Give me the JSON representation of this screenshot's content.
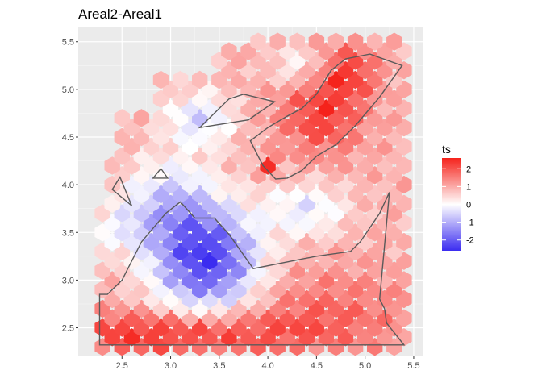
{
  "chart_data": {
    "type": "heatmap",
    "title": "Areal2-Areal1",
    "xlabel": "",
    "ylabel": "",
    "xlim": [
      2.05,
      5.6
    ],
    "ylim": [
      2.2,
      5.65
    ],
    "x_ticks": [
      "2.5",
      "3.0",
      "3.5",
      "4.0",
      "4.5",
      "5.0",
      "5.5"
    ],
    "y_ticks": [
      "2.5",
      "3.0",
      "3.5",
      "4.0",
      "4.5",
      "5.0",
      "5.5"
    ],
    "x_tick_values": [
      2.5,
      3.0,
      3.5,
      4.0,
      4.5,
      5.0,
      5.5
    ],
    "y_tick_values": [
      2.5,
      3.0,
      3.5,
      4.0,
      4.5,
      5.0,
      5.5
    ],
    "grid": true,
    "legend": {
      "title": "ts",
      "position": "right",
      "ticks": [
        "2",
        "1",
        "0",
        "-1",
        "-2"
      ],
      "tick_values": [
        2,
        1,
        0,
        -1,
        -2
      ],
      "range": [
        -2.6,
        2.6
      ],
      "low_color": "#3b2cf0",
      "mid_color": "#ffffff",
      "high_color": "#f5221b"
    },
    "hex_value_model": "estimated smooth field sampled on hexagonal bins",
    "regions": [
      {
        "points": [
          [
            2.27,
            2.32
          ],
          [
            5.4,
            2.32
          ],
          [
            5.22,
            2.55
          ],
          [
            5.2,
            2.7
          ],
          [
            5.15,
            2.8
          ],
          [
            5.25,
            3.92
          ],
          [
            5.15,
            3.7
          ],
          [
            4.95,
            3.4
          ],
          [
            4.85,
            3.3
          ],
          [
            4.5,
            3.25
          ],
          [
            3.85,
            3.12
          ],
          [
            3.6,
            3.48
          ],
          [
            3.45,
            3.65
          ],
          [
            3.25,
            3.65
          ],
          [
            3.1,
            3.82
          ],
          [
            2.95,
            3.7
          ],
          [
            2.7,
            3.4
          ],
          [
            2.5,
            3.0
          ],
          [
            2.35,
            2.85
          ],
          [
            2.27,
            2.85
          ]
        ]
      },
      {
        "points": [
          [
            3.3,
            4.6
          ],
          [
            3.6,
            4.9
          ],
          [
            3.75,
            4.95
          ],
          [
            4.07,
            4.87
          ],
          [
            3.8,
            4.68
          ]
        ]
      },
      {
        "points": [
          [
            3.82,
            4.46
          ],
          [
            4.0,
            4.6
          ],
          [
            4.2,
            4.72
          ],
          [
            4.35,
            4.8
          ],
          [
            4.5,
            4.95
          ],
          [
            4.65,
            5.2
          ],
          [
            4.8,
            5.32
          ],
          [
            5.05,
            5.37
          ],
          [
            5.38,
            5.25
          ],
          [
            5.15,
            4.92
          ],
          [
            4.9,
            4.62
          ],
          [
            4.7,
            4.42
          ],
          [
            4.5,
            4.3
          ],
          [
            4.35,
            4.15
          ],
          [
            4.2,
            4.07
          ],
          [
            4.08,
            4.06
          ],
          [
            3.95,
            4.2
          ],
          [
            3.9,
            4.3
          ]
        ]
      },
      {
        "points": [
          [
            2.4,
            3.95
          ],
          [
            2.48,
            4.08
          ],
          [
            2.6,
            3.78
          ]
        ]
      },
      {
        "points": [
          [
            2.82,
            4.07
          ],
          [
            2.9,
            4.17
          ],
          [
            2.97,
            4.07
          ]
        ]
      }
    ]
  }
}
